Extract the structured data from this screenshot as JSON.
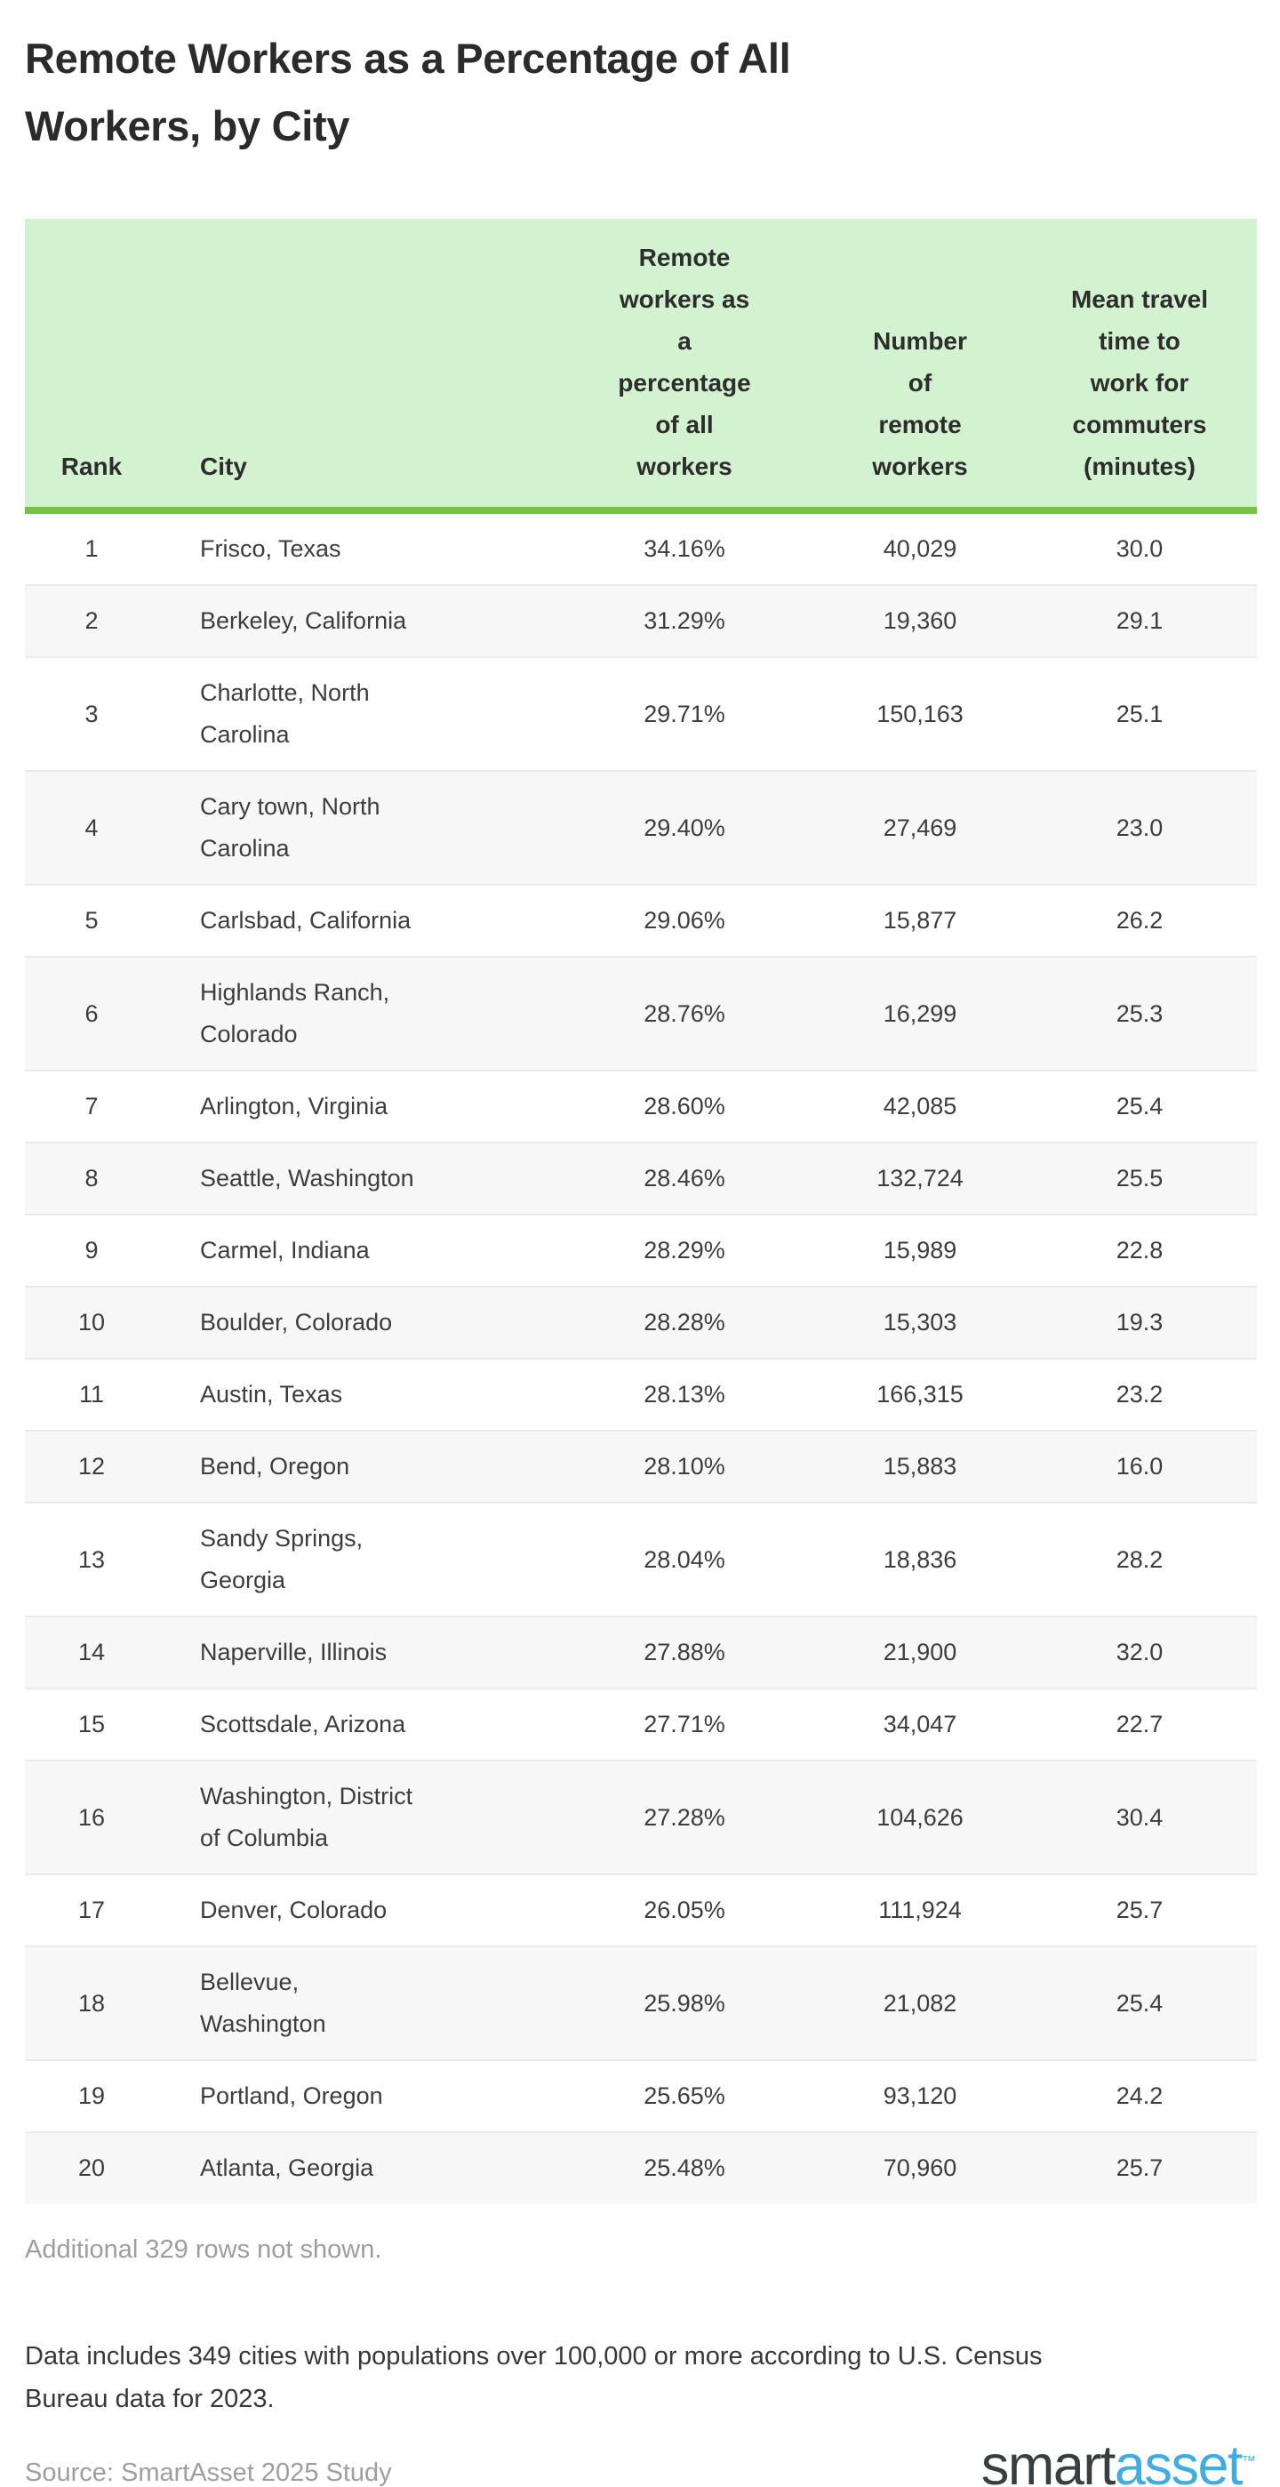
{
  "title": "Remote Workers as a Percentage of All\nWorkers, by City",
  "table": {
    "columns": [
      {
        "label": "Rank"
      },
      {
        "label": "City"
      },
      {
        "label": "Remote\nworkers as\na\npercentage\nof all\nworkers"
      },
      {
        "label": "Number\nof\nremote\nworkers"
      },
      {
        "label": "Mean travel\ntime to\nwork for\ncommuters\n(minutes)"
      }
    ],
    "rows": [
      {
        "rank": "1",
        "city": "Frisco, Texas",
        "pct": "34.16%",
        "num": "40,029",
        "travel": "30.0"
      },
      {
        "rank": "2",
        "city": "Berkeley, California",
        "pct": "31.29%",
        "num": "19,360",
        "travel": "29.1"
      },
      {
        "rank": "3",
        "city": "Charlotte, North\nCarolina",
        "pct": "29.71%",
        "num": "150,163",
        "travel": "25.1"
      },
      {
        "rank": "4",
        "city": "Cary town, North\nCarolina",
        "pct": "29.40%",
        "num": "27,469",
        "travel": "23.0"
      },
      {
        "rank": "5",
        "city": "Carlsbad, California",
        "pct": "29.06%",
        "num": "15,877",
        "travel": "26.2"
      },
      {
        "rank": "6",
        "city": "Highlands Ranch,\nColorado",
        "pct": "28.76%",
        "num": "16,299",
        "travel": "25.3"
      },
      {
        "rank": "7",
        "city": "Arlington, Virginia",
        "pct": "28.60%",
        "num": "42,085",
        "travel": "25.4"
      },
      {
        "rank": "8",
        "city": "Seattle, Washington",
        "pct": "28.46%",
        "num": "132,724",
        "travel": "25.5"
      },
      {
        "rank": "9",
        "city": "Carmel, Indiana",
        "pct": "28.29%",
        "num": "15,989",
        "travel": "22.8"
      },
      {
        "rank": "10",
        "city": "Boulder, Colorado",
        "pct": "28.28%",
        "num": "15,303",
        "travel": "19.3"
      },
      {
        "rank": "11",
        "city": "Austin, Texas",
        "pct": "28.13%",
        "num": "166,315",
        "travel": "23.2"
      },
      {
        "rank": "12",
        "city": "Bend, Oregon",
        "pct": "28.10%",
        "num": "15,883",
        "travel": "16.0"
      },
      {
        "rank": "13",
        "city": "Sandy Springs,\nGeorgia",
        "pct": "28.04%",
        "num": "18,836",
        "travel": "28.2"
      },
      {
        "rank": "14",
        "city": "Naperville, Illinois",
        "pct": "27.88%",
        "num": "21,900",
        "travel": "32.0"
      },
      {
        "rank": "15",
        "city": "Scottsdale, Arizona",
        "pct": "27.71%",
        "num": "34,047",
        "travel": "22.7"
      },
      {
        "rank": "16",
        "city": "Washington, District\nof Columbia",
        "pct": "27.28%",
        "num": "104,626",
        "travel": "30.4"
      },
      {
        "rank": "17",
        "city": "Denver, Colorado",
        "pct": "26.05%",
        "num": "111,924",
        "travel": "25.7"
      },
      {
        "rank": "18",
        "city": "Bellevue,\nWashington",
        "pct": "25.98%",
        "num": "21,082",
        "travel": "25.4"
      },
      {
        "rank": "19",
        "city": "Portland, Oregon",
        "pct": "25.65%",
        "num": "93,120",
        "travel": "24.2"
      },
      {
        "rank": "20",
        "city": "Atlanta, Georgia",
        "pct": "25.48%",
        "num": "70,960",
        "travel": "25.7"
      }
    ]
  },
  "footer": {
    "additional_rows_note": "Additional 329 rows not shown.",
    "data_note": "Data includes 349 cities with populations over 100,000 or more according to U.S. Census\nBureau data for 2023.",
    "source": "Source: SmartAsset 2025 Study",
    "logo": {
      "part1": "smart",
      "part2": "asset",
      "tm": "™"
    }
  },
  "colors": {
    "header_background": "#d2f2d0",
    "header_border_green": "#79c143",
    "row_stripe_gray": "#f7f7f7",
    "row_divider": "#eaeaea",
    "title_text": "#2b2b2b",
    "body_text": "#3d3d3d",
    "muted_text": "#9e9e9e",
    "logo_dark": "#3a3e41",
    "logo_blue": "#41ace1"
  },
  "chart_data": {
    "type": "table",
    "title": "Remote Workers as a Percentage of All Workers, by City",
    "columns": [
      "Rank",
      "City",
      "Remote workers as a percentage of all workers",
      "Number of remote workers",
      "Mean travel time to work for commuters (minutes)"
    ],
    "rows": [
      [
        1,
        "Frisco, Texas",
        34.16,
        40029,
        30.0
      ],
      [
        2,
        "Berkeley, California",
        31.29,
        19360,
        29.1
      ],
      [
        3,
        "Charlotte, North Carolina",
        29.71,
        150163,
        25.1
      ],
      [
        4,
        "Cary town, North Carolina",
        29.4,
        27469,
        23.0
      ],
      [
        5,
        "Carlsbad, California",
        29.06,
        15877,
        26.2
      ],
      [
        6,
        "Highlands Ranch, Colorado",
        28.76,
        16299,
        25.3
      ],
      [
        7,
        "Arlington, Virginia",
        28.6,
        42085,
        25.4
      ],
      [
        8,
        "Seattle, Washington",
        28.46,
        132724,
        25.5
      ],
      [
        9,
        "Carmel, Indiana",
        28.29,
        15989,
        22.8
      ],
      [
        10,
        "Boulder, Colorado",
        28.28,
        15303,
        19.3
      ],
      [
        11,
        "Austin, Texas",
        28.13,
        166315,
        23.2
      ],
      [
        12,
        "Bend, Oregon",
        28.1,
        15883,
        16.0
      ],
      [
        13,
        "Sandy Springs, Georgia",
        28.04,
        18836,
        28.2
      ],
      [
        14,
        "Naperville, Illinois",
        27.88,
        21900,
        32.0
      ],
      [
        15,
        "Scottsdale, Arizona",
        27.71,
        34047,
        22.7
      ],
      [
        16,
        "Washington, District of Columbia",
        27.28,
        104626,
        30.4
      ],
      [
        17,
        "Denver, Colorado",
        26.05,
        111924,
        25.7
      ],
      [
        18,
        "Bellevue, Washington",
        25.98,
        21082,
        25.4
      ],
      [
        19,
        "Portland, Oregon",
        25.65,
        93120,
        24.2
      ],
      [
        20,
        "Atlanta, Georgia",
        25.48,
        70960,
        25.7
      ]
    ],
    "notes": [
      "Additional 329 rows not shown.",
      "Data includes 349 cities with populations over 100,000 or more according to U.S. Census Bureau data for 2023.",
      "Source: SmartAsset 2025 Study"
    ]
  }
}
